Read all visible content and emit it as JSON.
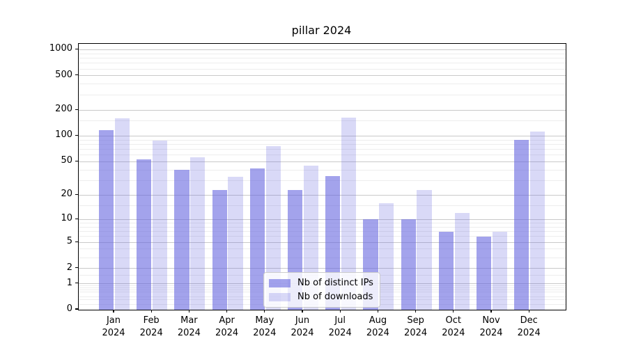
{
  "chart_data": {
    "type": "bar",
    "title": "pillar 2024",
    "categories": [
      "Jan 2024",
      "Feb 2024",
      "Mar 2024",
      "Apr 2024",
      "May 2024",
      "Jun 2024",
      "Jul 2024",
      "Aug 2024",
      "Sep 2024",
      "Oct 2024",
      "Nov 2024",
      "Dec 2024"
    ],
    "series": [
      {
        "name": "Nb of distinct IPs",
        "values": [
          118,
          53,
          40,
          23,
          42,
          23,
          34,
          10,
          10,
          7,
          6,
          90
        ]
      },
      {
        "name": "Nb of downloads",
        "values": [
          162,
          88,
          56,
          33,
          76,
          45,
          164,
          16,
          23,
          12,
          7,
          112
        ]
      }
    ],
    "xlabel": "",
    "ylabel": "",
    "yscale": "log1p",
    "yticks": [
      0,
      1,
      2,
      5,
      10,
      20,
      50,
      100,
      200,
      500,
      1000
    ],
    "ylim": [
      0,
      1160
    ],
    "grid": "horizontal major + minor",
    "legend_position": "lower center",
    "colors": {
      "bar_base": "#6666e0",
      "bar_alpha_ips": 0.6,
      "bar_alpha_downloads": 0.25,
      "grid_major": "#c9c9c9",
      "grid_minor": "#ededed",
      "axis": "#000000",
      "legend_border": "#cccccc"
    }
  }
}
